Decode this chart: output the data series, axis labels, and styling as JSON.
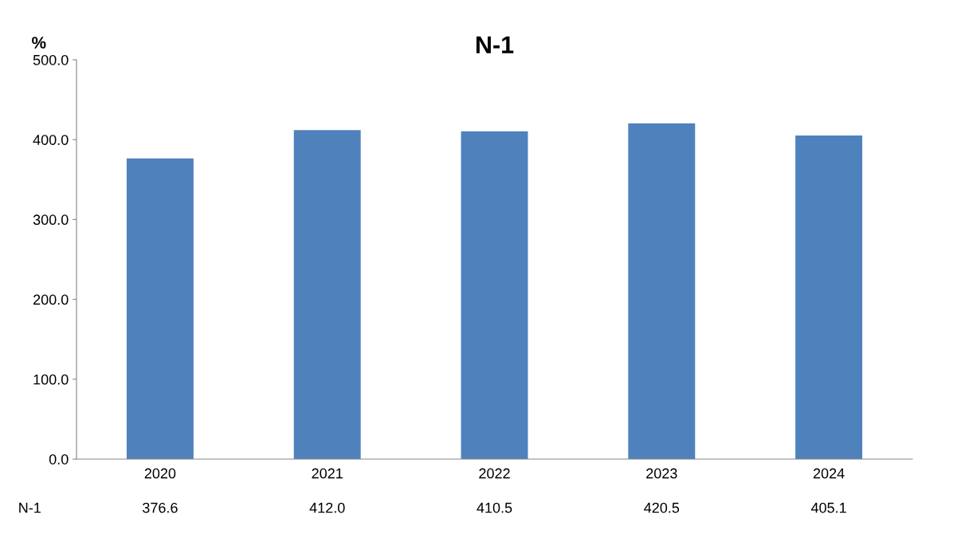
{
  "chart_data": {
    "type": "bar",
    "title": "N-1",
    "ylabel": "%",
    "categories": [
      "2020",
      "2021",
      "2022",
      "2023",
      "2024"
    ],
    "series": [
      {
        "name": "N-1",
        "color": "#4f81bd",
        "values": [
          376.6,
          412.0,
          410.5,
          420.5,
          405.1
        ],
        "value_labels": [
          "376.6",
          "412.0",
          "410.5",
          "420.5",
          "405.1"
        ]
      }
    ],
    "ylim": [
      0,
      500
    ],
    "yticks": [
      {
        "value": 0,
        "label": "0.0"
      },
      {
        "value": 100,
        "label": "100.0"
      },
      {
        "value": 200,
        "label": "200.0"
      },
      {
        "value": 300,
        "label": "300.0"
      },
      {
        "value": 400,
        "label": "400.0"
      },
      {
        "value": 500,
        "label": "500.0"
      }
    ],
    "grid": false,
    "legend": false
  }
}
